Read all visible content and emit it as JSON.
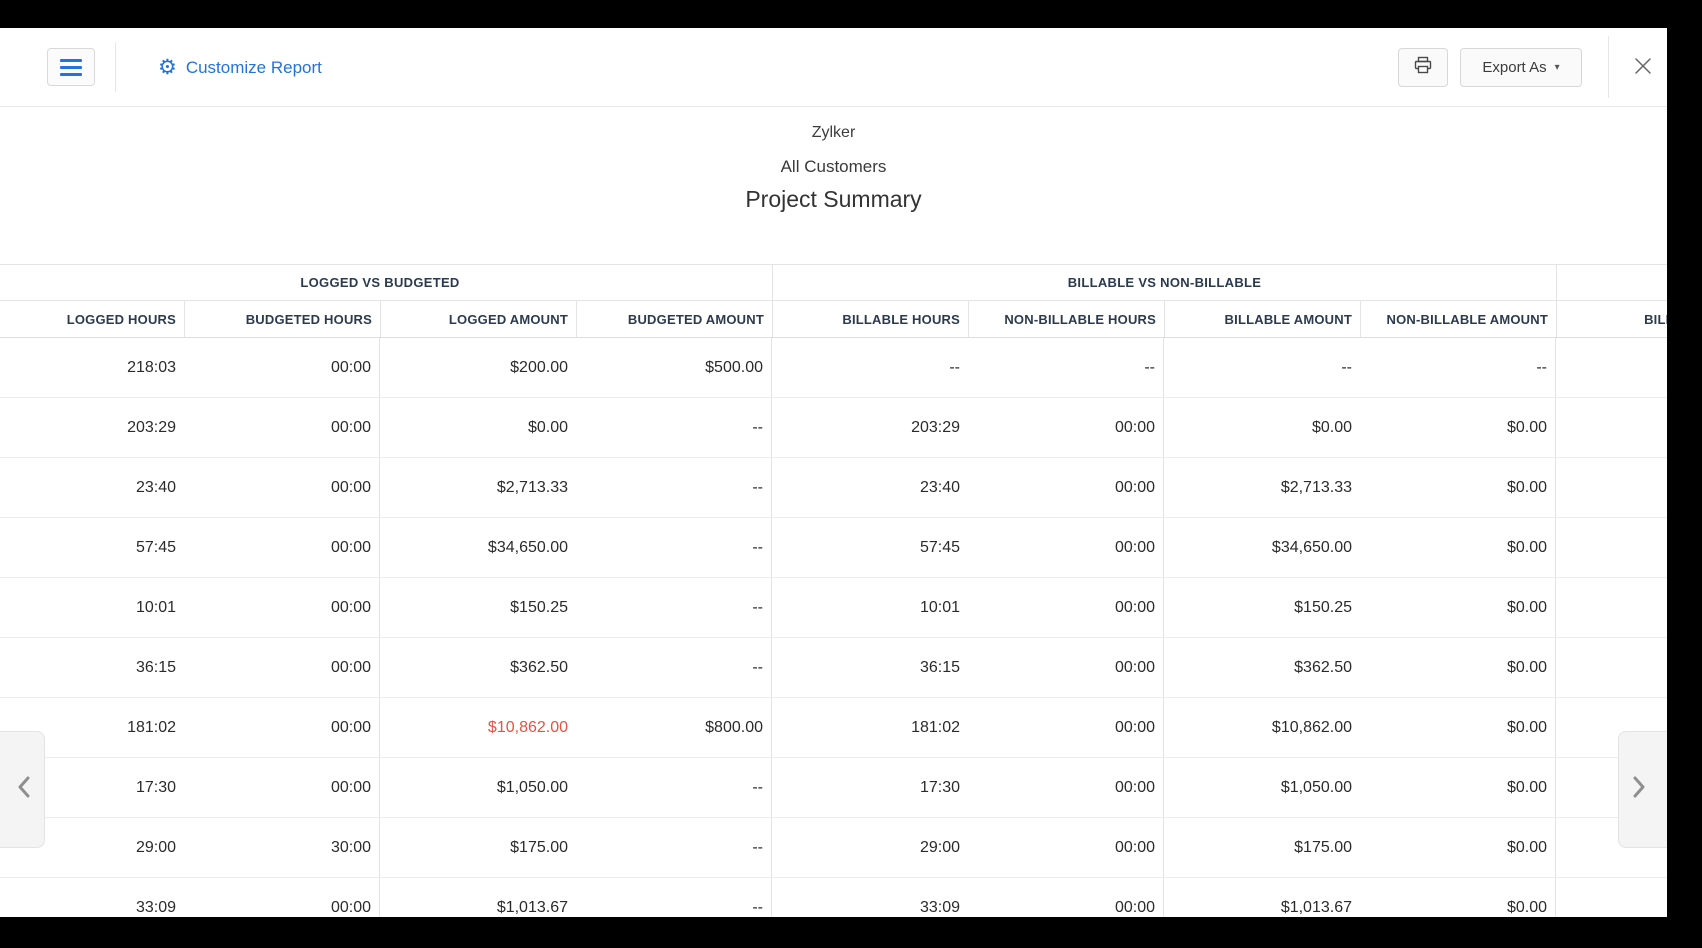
{
  "toolbar": {
    "customize_report": "Customize Report",
    "export_as": "Export As"
  },
  "report_header": {
    "company": "Zylker",
    "customer_scope": "All Customers",
    "report_title": "Project Summary"
  },
  "table": {
    "group_headers": [
      "LOGGED VS BUDGETED",
      "BILLABLE VS NON-BILLABLE",
      ""
    ],
    "columns": [
      "LOGGED HOURS",
      "BUDGETED HOURS",
      "LOGGED AMOUNT",
      "BUDGETED AMOUNT",
      "BILLABLE HOURS",
      "NON-BILLABLE HOURS",
      "BILLABLE AMOUNT",
      "NON-BILLABLE AMOUNT",
      "BILLED HOURS"
    ],
    "rows": [
      {
        "cells": [
          "218:03",
          "00:00",
          "$200.00",
          "$500.00",
          "--",
          "--",
          "--",
          "--",
          ""
        ]
      },
      {
        "cells": [
          "203:29",
          "00:00",
          "$0.00",
          "--",
          "203:29",
          "00:00",
          "$0.00",
          "$0.00",
          ""
        ]
      },
      {
        "cells": [
          "23:40",
          "00:00",
          "$2,713.33",
          "--",
          "23:40",
          "00:00",
          "$2,713.33",
          "$0.00",
          ""
        ]
      },
      {
        "cells": [
          "57:45",
          "00:00",
          "$34,650.00",
          "--",
          "57:45",
          "00:00",
          "$34,650.00",
          "$0.00",
          ""
        ]
      },
      {
        "cells": [
          "10:01",
          "00:00",
          "$150.25",
          "--",
          "10:01",
          "00:00",
          "$150.25",
          "$0.00",
          ""
        ]
      },
      {
        "cells": [
          "36:15",
          "00:00",
          "$362.50",
          "--",
          "36:15",
          "00:00",
          "$362.50",
          "$0.00",
          ""
        ]
      },
      {
        "cells": [
          "181:02",
          "00:00",
          "$10,862.00",
          "$800.00",
          "181:02",
          "00:00",
          "$10,862.00",
          "$0.00",
          ""
        ],
        "red_cells": [
          2
        ]
      },
      {
        "cells": [
          "17:30",
          "00:00",
          "$1,050.00",
          "--",
          "17:30",
          "00:00",
          "$1,050.00",
          "$0.00",
          ""
        ]
      },
      {
        "cells": [
          "29:00",
          "30:00",
          "$175.00",
          "--",
          "29:00",
          "00:00",
          "$175.00",
          "$0.00",
          ""
        ]
      },
      {
        "cells": [
          "33:09",
          "00:00",
          "$1,013.67",
          "--",
          "33:09",
          "00:00",
          "$1,013.67",
          "$0.00",
          ""
        ]
      }
    ]
  },
  "icons": {
    "gear_glyph": "⚙",
    "export_caret_glyph": "▾"
  },
  "colors": {
    "accent_blue": "#2472dd",
    "negative_red": "#e8513d",
    "header_text": "#2c3a50"
  }
}
